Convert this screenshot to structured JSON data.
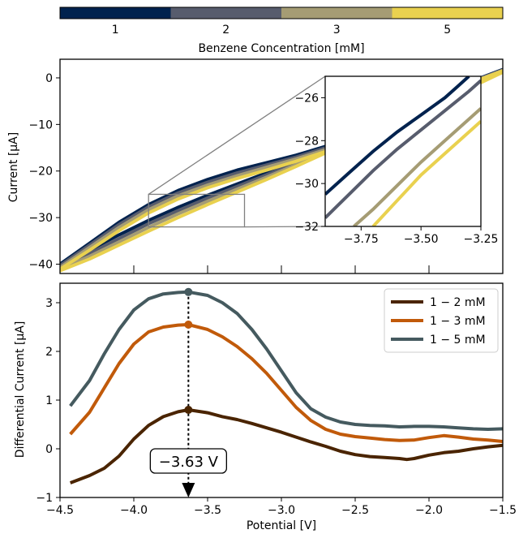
{
  "colorbar": {
    "label": "Benzene Concentration [mM]",
    "ticks": [
      "1",
      "2",
      "3",
      "5"
    ],
    "colors": [
      "#00224e",
      "#575c6d",
      "#a59c74",
      "#e9d14f"
    ]
  },
  "chart_data": [
    {
      "type": "line",
      "panel": "top",
      "ylabel": "Current [μA]",
      "xlim": [
        -4.5,
        -1.5
      ],
      "ylim": [
        -42,
        4
      ],
      "yticks": [
        0,
        -10,
        -20,
        -30,
        -40
      ],
      "grid": false,
      "legend": "colorbar",
      "note": "Cyclic voltammograms, one loop per concentration; curves shown top-left region, continuing off to the right.",
      "series": [
        {
          "name": "1",
          "color": "#00224e",
          "upper": {
            "x": [
              -4.5,
              -4.3,
              -4.1,
              -3.9,
              -3.7,
              -3.5,
              -3.3,
              -3.1,
              -2.9,
              -2.7,
              -2.5,
              -2.3,
              -2.1,
              -1.9,
              -1.7,
              -1.5
            ],
            "y": [
              -40,
              -35.5,
              -31,
              -27.2,
              -24.2,
              -21.8,
              -19.8,
              -18.2,
              -16.6,
              -14.7,
              -12.4,
              -9.8,
              -7.0,
              -4.2,
              -1.4,
              1.5
            ]
          },
          "lower": {
            "x": [
              -4.5,
              -4.3,
              -4.1,
              -3.9,
              -3.7,
              -3.5,
              -3.3,
              -3.1,
              -2.9,
              -2.7,
              -2.5,
              -2.3,
              -2.1,
              -1.9,
              -1.7,
              -1.5
            ],
            "y": [
              -40,
              -37,
              -33.7,
              -30.6,
              -27.8,
              -25.2,
              -22.8,
              -20.4,
              -17.8,
              -15.0,
              -12.1,
              -9.2,
              -6.2,
              -3.3,
              -0.6,
              1.8
            ]
          }
        },
        {
          "name": "2",
          "color": "#575c6d",
          "upper": {
            "x": [
              -4.5,
              -4.3,
              -4.1,
              -3.9,
              -3.7,
              -3.5,
              -3.3,
              -3.1,
              -2.9,
              -2.7,
              -2.5,
              -2.3,
              -2.1,
              -1.9,
              -1.7,
              -1.5
            ],
            "y": [
              -40.3,
              -35.9,
              -31.5,
              -27.7,
              -24.7,
              -22.4,
              -20.4,
              -18.7,
              -17.0,
              -15.0,
              -12.7,
              -10.1,
              -7.3,
              -4.4,
              -1.5,
              1.4
            ]
          },
          "lower": {
            "x": [
              -4.5,
              -4.3,
              -4.1,
              -3.9,
              -3.7,
              -3.5,
              -3.3,
              -3.1,
              -2.9,
              -2.7,
              -2.5,
              -2.3,
              -2.1,
              -1.9,
              -1.7,
              -1.5
            ],
            "y": [
              -40.6,
              -37.7,
              -34.5,
              -31.3,
              -28.5,
              -25.8,
              -23.3,
              -20.8,
              -18.2,
              -15.4,
              -12.4,
              -9.4,
              -6.4,
              -3.5,
              -0.7,
              1.7
            ]
          }
        },
        {
          "name": "3",
          "color": "#a59c74",
          "upper": {
            "x": [
              -4.5,
              -4.3,
              -4.1,
              -3.9,
              -3.7,
              -3.5,
              -3.3,
              -3.1,
              -2.9,
              -2.7,
              -2.5,
              -2.3,
              -2.1,
              -1.9,
              -1.7,
              -1.5
            ],
            "y": [
              -40.7,
              -36.4,
              -32.1,
              -28.3,
              -25.3,
              -23.0,
              -21.0,
              -19.2,
              -17.4,
              -15.4,
              -13.0,
              -10.4,
              -7.5,
              -4.6,
              -1.7,
              1.3
            ]
          },
          "lower": {
            "x": [
              -4.5,
              -4.3,
              -4.1,
              -3.9,
              -3.7,
              -3.5,
              -3.3,
              -3.1,
              -2.9,
              -2.7,
              -2.5,
              -2.3,
              -2.1,
              -1.9,
              -1.7,
              -1.5
            ],
            "y": [
              -41.0,
              -38.3,
              -35.2,
              -32.1,
              -29.2,
              -26.5,
              -23.9,
              -21.3,
              -18.6,
              -15.7,
              -12.7,
              -9.7,
              -6.6,
              -3.7,
              -0.8,
              1.6
            ]
          }
        },
        {
          "name": "5",
          "color": "#e9d14f",
          "upper": {
            "x": [
              -4.5,
              -4.3,
              -4.1,
              -3.9,
              -3.7,
              -3.5,
              -3.3,
              -3.1,
              -2.9,
              -2.7,
              -2.5,
              -2.3,
              -2.1,
              -1.9,
              -1.7,
              -1.5
            ],
            "y": [
              -41.1,
              -37.0,
              -32.8,
              -29.0,
              -26.0,
              -23.6,
              -21.6,
              -19.8,
              -17.9,
              -15.8,
              -13.4,
              -10.7,
              -7.8,
              -4.8,
              -1.8,
              1.2
            ]
          },
          "lower": {
            "x": [
              -4.5,
              -4.3,
              -4.1,
              -3.9,
              -3.7,
              -3.5,
              -3.3,
              -3.1,
              -2.9,
              -2.7,
              -2.5,
              -2.3,
              -2.1,
              -1.9,
              -1.7,
              -1.5
            ],
            "y": [
              -41.4,
              -38.9,
              -35.9,
              -32.9,
              -30.0,
              -27.2,
              -24.5,
              -21.8,
              -19.0,
              -16.1,
              -13.0,
              -9.9,
              -6.8,
              -3.8,
              -0.9,
              1.5
            ]
          }
        }
      ],
      "inset": {
        "xlim": [
          -3.9,
          -3.25
        ],
        "ylim": [
          -32,
          -25
        ],
        "xticks": [
          -3.75,
          -3.5,
          -3.25
        ],
        "xticklabels": [
          "−3.75",
          "−3.50",
          "−3.25"
        ],
        "yticks": [
          -26,
          -28,
          -30,
          -32
        ],
        "yticklabels": [
          "−26",
          "−28",
          "−30",
          "−32"
        ],
        "lines": [
          {
            "name": "1",
            "color": "#00224e",
            "x": [
              -3.9,
              -3.8,
              -3.7,
              -3.6,
              -3.5,
              -3.4,
              -3.35,
              -3.3
            ],
            "y": [
              -30.5,
              -29.5,
              -28.5,
              -27.6,
              -26.8,
              -26.0,
              -25.5,
              -25.0
            ]
          },
          {
            "name": "2",
            "color": "#575c6d",
            "x": [
              -3.9,
              -3.8,
              -3.7,
              -3.6,
              -3.5,
              -3.4,
              -3.3,
              -3.25
            ],
            "y": [
              -31.6,
              -30.5,
              -29.4,
              -28.4,
              -27.5,
              -26.6,
              -25.7,
              -25.2
            ]
          },
          {
            "name": "3",
            "color": "#a59c74",
            "x": [
              -3.78,
              -3.7,
              -3.6,
              -3.5,
              -3.4,
              -3.3,
              -3.25
            ],
            "y": [
              -32.0,
              -31.2,
              -30.1,
              -29.0,
              -28.0,
              -27.0,
              -26.5
            ]
          },
          {
            "name": "5",
            "color": "#e9d14f",
            "x": [
              -3.7,
              -3.6,
              -3.5,
              -3.4,
              -3.3,
              -3.25
            ],
            "y": [
              -32.0,
              -30.8,
              -29.6,
              -28.6,
              -27.6,
              -27.1
            ]
          }
        ]
      }
    },
    {
      "type": "line",
      "panel": "bottom",
      "xlabel": "Potential [V]",
      "ylabel": "Differential Current [μA]",
      "xlim": [
        -4.5,
        -1.5
      ],
      "ylim": [
        -1,
        3.4
      ],
      "xticks": [
        -4.5,
        -4.0,
        -3.5,
        -3.0,
        -2.5,
        -2.0,
        -1.5
      ],
      "xticklabels": [
        "−4.5",
        "−4.0",
        "−3.5",
        "−3.0",
        "−2.5",
        "−2.0",
        "−1.5"
      ],
      "yticks": [
        -1,
        0,
        1,
        2,
        3
      ],
      "yticklabels": [
        "−1",
        "0",
        "1",
        "2",
        "3"
      ],
      "grid": false,
      "legend": "top-right",
      "annotation": {
        "text": "−3.63 V",
        "x": -3.63
      },
      "series": [
        {
          "name": "1 − 2 mM",
          "color": "#4a2400",
          "x": [
            -4.43,
            -4.3,
            -4.2,
            -4.1,
            -4.0,
            -3.9,
            -3.8,
            -3.7,
            -3.63,
            -3.5,
            -3.4,
            -3.3,
            -3.2,
            -3.1,
            -3.0,
            -2.9,
            -2.8,
            -2.7,
            -2.6,
            -2.5,
            -2.4,
            -2.3,
            -2.2,
            -2.15,
            -2.1,
            -2.0,
            -1.9,
            -1.8,
            -1.7,
            -1.6,
            -1.5
          ],
          "y": [
            -0.7,
            -0.55,
            -0.4,
            -0.15,
            0.2,
            0.48,
            0.66,
            0.76,
            0.8,
            0.74,
            0.66,
            0.6,
            0.52,
            0.43,
            0.34,
            0.24,
            0.14,
            0.05,
            -0.05,
            -0.12,
            -0.16,
            -0.18,
            -0.2,
            -0.22,
            -0.2,
            -0.13,
            -0.08,
            -0.05,
            0.0,
            0.04,
            0.07
          ]
        },
        {
          "name": "1 − 3 mM",
          "color": "#c15a0a",
          "x": [
            -4.43,
            -4.3,
            -4.2,
            -4.1,
            -4.0,
            -3.9,
            -3.8,
            -3.7,
            -3.63,
            -3.5,
            -3.4,
            -3.3,
            -3.2,
            -3.1,
            -3.0,
            -2.9,
            -2.8,
            -2.7,
            -2.6,
            -2.5,
            -2.4,
            -2.3,
            -2.2,
            -2.1,
            -2.0,
            -1.9,
            -1.8,
            -1.7,
            -1.6,
            -1.5
          ],
          "y": [
            0.3,
            0.75,
            1.25,
            1.75,
            2.15,
            2.4,
            2.5,
            2.54,
            2.55,
            2.45,
            2.3,
            2.1,
            1.85,
            1.55,
            1.2,
            0.85,
            0.58,
            0.4,
            0.3,
            0.25,
            0.22,
            0.19,
            0.17,
            0.18,
            0.23,
            0.27,
            0.24,
            0.2,
            0.18,
            0.15
          ]
        },
        {
          "name": "1 − 5 mM",
          "color": "#455a5f",
          "x": [
            -4.43,
            -4.3,
            -4.2,
            -4.1,
            -4.0,
            -3.9,
            -3.8,
            -3.7,
            -3.63,
            -3.5,
            -3.4,
            -3.3,
            -3.2,
            -3.1,
            -3.0,
            -2.9,
            -2.8,
            -2.7,
            -2.6,
            -2.5,
            -2.4,
            -2.3,
            -2.2,
            -2.1,
            -2.0,
            -1.9,
            -1.8,
            -1.7,
            -1.6,
            -1.5
          ],
          "y": [
            0.88,
            1.4,
            1.95,
            2.45,
            2.85,
            3.08,
            3.18,
            3.21,
            3.22,
            3.15,
            3.0,
            2.78,
            2.45,
            2.05,
            1.6,
            1.15,
            0.82,
            0.65,
            0.55,
            0.5,
            0.48,
            0.47,
            0.45,
            0.46,
            0.46,
            0.45,
            0.43,
            0.41,
            0.4,
            0.41
          ]
        }
      ],
      "markers": [
        {
          "x": -3.63,
          "y": 0.8
        },
        {
          "x": -3.63,
          "y": 2.55
        },
        {
          "x": -3.63,
          "y": 3.22
        }
      ]
    }
  ]
}
